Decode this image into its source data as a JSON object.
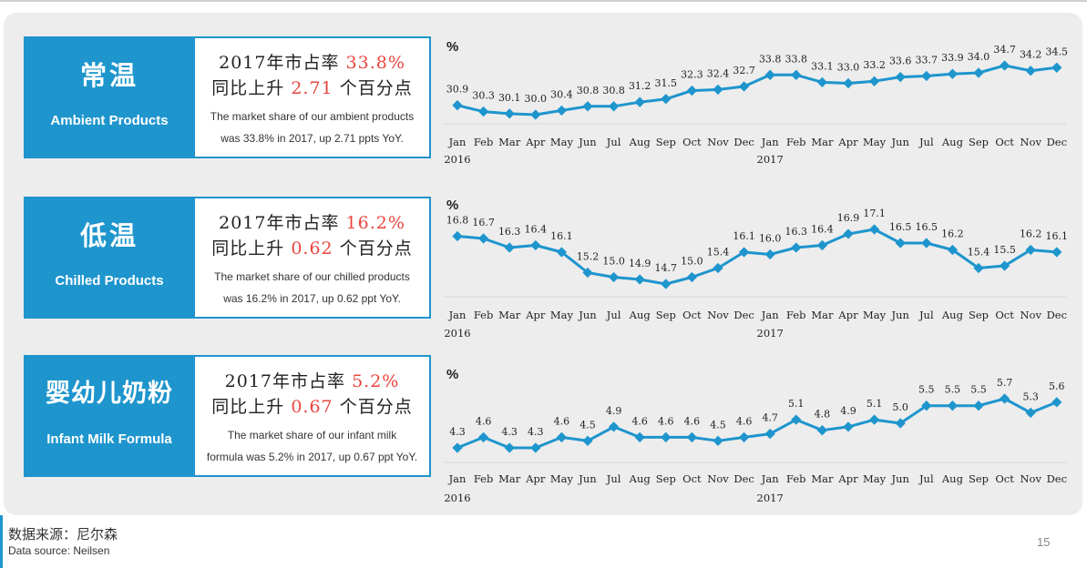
{
  "colors": {
    "accent": "#1e95cd",
    "highlight": "#e8463f"
  },
  "page_number": "15",
  "source": {
    "zh": "数据来源：尼尔森",
    "en": "Data source: Neilsen"
  },
  "rows": [
    {
      "zh_title": "常温",
      "en_title": "Ambient Products",
      "line1_prefix": "2017年市占率 ",
      "line1_value": "33.8%",
      "line2_prefix": "同比上升 ",
      "line2_value": "2.71",
      "line2_suffix": " 个百分点",
      "desc_1": "The market share of our ambient products",
      "desc_2": "was 33.8% in 2017, up 2.71 ppts YoY."
    },
    {
      "zh_title": "低温",
      "en_title": "Chilled Products",
      "line1_prefix": "2017年市占率 ",
      "line1_value": "16.2%",
      "line2_prefix": "同比上升 ",
      "line2_value": "0.62",
      "line2_suffix": " 个百分点",
      "desc_1": "The market share of our chilled products",
      "desc_2": "was 16.2% in 2017, up 0.62 ppt YoY."
    },
    {
      "zh_title": "婴幼儿奶粉",
      "en_title": "Infant Milk Formula",
      "line1_prefix": "2017年市占率 ",
      "line1_value": "5.2%",
      "line2_prefix": "同比上升 ",
      "line2_value": "0.67",
      "line2_suffix": " 个百分点",
      "desc_1": "The market share of our infant milk",
      "desc_2": "formula was 5.2% in 2017, up 0.67 ppt YoY."
    }
  ],
  "chart_data": [
    {
      "type": "line",
      "unit_label": "%",
      "categories": [
        "Jan",
        "Feb",
        "Mar",
        "Apr",
        "May",
        "Jun",
        "Jul",
        "Aug",
        "Sep",
        "Oct",
        "Nov",
        "Dec",
        "Jan",
        "Feb",
        "Mar",
        "Apr",
        "May",
        "Jun",
        "Jul",
        "Aug",
        "Sep",
        "Oct",
        "Nov",
        "Dec"
      ],
      "year_labels": [
        {
          "index": 0,
          "label": "2016"
        },
        {
          "index": 12,
          "label": "2017"
        }
      ],
      "values": [
        30.9,
        30.3,
        30.1,
        30.0,
        30.4,
        30.8,
        30.8,
        31.2,
        31.5,
        32.3,
        32.4,
        32.7,
        33.8,
        33.8,
        33.1,
        33.0,
        33.2,
        33.6,
        33.7,
        33.9,
        34.0,
        34.7,
        34.2,
        34.5
      ],
      "labels": [
        "30.9",
        "30.3",
        "30.1",
        "30.0",
        "30.4",
        "30.8",
        "30.8",
        "31.2",
        "31.5",
        "32.3",
        "32.4",
        "32.7",
        "33.8",
        "33.8",
        "33.1",
        "33.0",
        "33.2",
        "33.6",
        "33.7",
        "33.9",
        "34.0",
        "34.7",
        "34.2",
        "34.5"
      ],
      "color": "#1e95cd",
      "grid": false
    },
    {
      "type": "line",
      "unit_label": "%",
      "categories": [
        "Jan",
        "Feb",
        "Mar",
        "Apr",
        "May",
        "Jun",
        "Jul",
        "Aug",
        "Sep",
        "Oct",
        "Nov",
        "Dec",
        "Jan",
        "Feb",
        "Mar",
        "Apr",
        "May",
        "Jun",
        "Jul",
        "Aug",
        "Sep",
        "Oct",
        "Nov",
        "Dec"
      ],
      "year_labels": [
        {
          "index": 0,
          "label": "2016"
        },
        {
          "index": 12,
          "label": "2017"
        }
      ],
      "values": [
        16.8,
        16.7,
        16.3,
        16.4,
        16.1,
        15.2,
        15.0,
        14.9,
        14.7,
        15.0,
        15.4,
        16.1,
        16.0,
        16.3,
        16.4,
        16.9,
        17.1,
        16.5,
        16.5,
        16.2,
        15.4,
        15.5,
        16.2,
        16.1
      ],
      "labels": [
        "16.8",
        "16.7",
        "16.3",
        "16.4",
        "16.1",
        "15.2",
        "15.0",
        "14.9",
        "14.7",
        "15.0",
        "15.4",
        "16.1",
        "16.0",
        "16.3",
        "16.4",
        "16.9",
        "17.1",
        "16.5",
        "16.5",
        "16.2",
        "15.4",
        "15.5",
        "16.2",
        "16.1"
      ],
      "color": "#1e95cd",
      "grid": false
    },
    {
      "type": "line",
      "unit_label": "%",
      "categories": [
        "Jan",
        "Feb",
        "Mar",
        "Apr",
        "May",
        "Jun",
        "Jul",
        "Aug",
        "Sep",
        "Oct",
        "Nov",
        "Dec",
        "Jan",
        "Feb",
        "Mar",
        "Apr",
        "May",
        "Jun",
        "Jul",
        "Aug",
        "Sep",
        "Oct",
        "Nov",
        "Dec"
      ],
      "year_labels": [
        {
          "index": 0,
          "label": "2016"
        },
        {
          "index": 12,
          "label": "2017"
        }
      ],
      "values": [
        4.3,
        4.6,
        4.3,
        4.3,
        4.6,
        4.5,
        4.9,
        4.6,
        4.6,
        4.6,
        4.5,
        4.6,
        4.7,
        5.1,
        4.8,
        4.9,
        5.1,
        5.0,
        5.5,
        5.5,
        5.5,
        5.7,
        5.3,
        5.6
      ],
      "labels": [
        "4.3",
        "4.6",
        "4.3",
        "4.3",
        "4.6",
        "4.5",
        "4.9",
        "4.6",
        "4.6",
        "4.6",
        "4.5",
        "4.6",
        "4.7",
        "5.1",
        "4.8",
        "4.9",
        "5.1",
        "5.0",
        "5.5",
        "5.5",
        "5.5",
        "5.7",
        "5.3",
        "5.6"
      ],
      "color": "#1e95cd",
      "grid": false
    }
  ]
}
